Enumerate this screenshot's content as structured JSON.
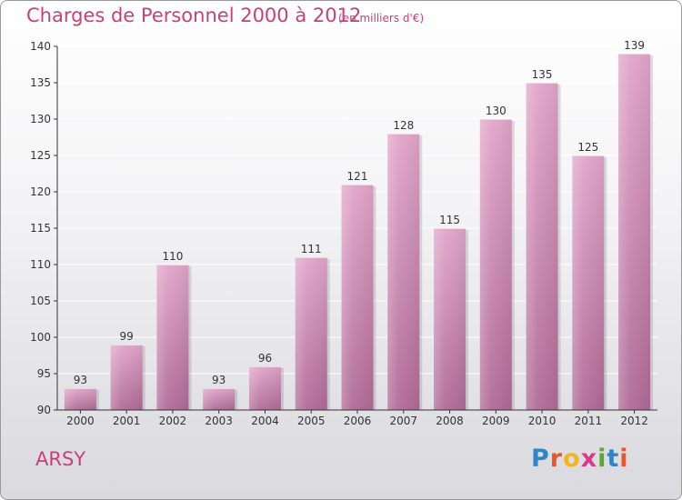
{
  "header": {
    "title": "Charges de Personnel 2000 à 2012",
    "subtitle": "(en milliers d'€)"
  },
  "footer": {
    "town": "ARSY",
    "logo_letters": [
      "P",
      "r",
      "o",
      "x",
      "i",
      "t",
      "i"
    ],
    "logo_colors": [
      "#2e86c8",
      "#e8562a",
      "#f2b51c",
      "#d83a8c",
      "#5aa832",
      "#2e86c8",
      "#e8562a"
    ]
  },
  "colors": {
    "bar_top": "#e2a6cb",
    "bar_bottom": "#b06b97",
    "axis": "#333333",
    "grid": "#ffffff"
  },
  "chart_data": {
    "type": "bar",
    "title": "Charges de Personnel 2000 à 2012",
    "subtitle": "(en milliers d'€)",
    "categories": [
      "2000",
      "2001",
      "2002",
      "2003",
      "2004",
      "2005",
      "2006",
      "2007",
      "2008",
      "2009",
      "2010",
      "2011",
      "2012"
    ],
    "values": [
      93,
      99,
      110,
      93,
      96,
      111,
      121,
      128,
      115,
      130,
      135,
      125,
      139
    ],
    "ylim": [
      90,
      140
    ],
    "yticks": [
      90,
      95,
      100,
      105,
      110,
      115,
      120,
      125,
      130,
      135,
      140
    ],
    "grid": true,
    "xlabel": "",
    "ylabel": ""
  }
}
